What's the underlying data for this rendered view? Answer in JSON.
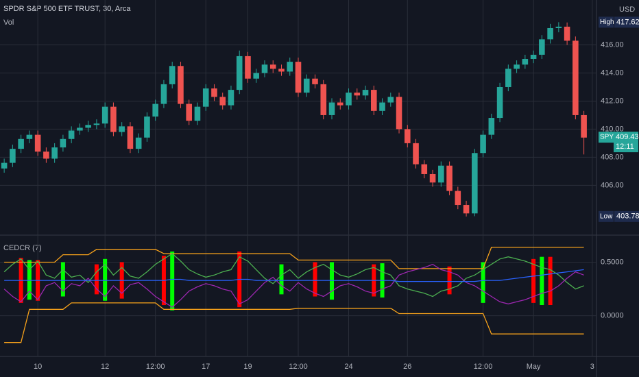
{
  "header": {
    "title": "SPDR S&P 500 ETF TRUST, 30, Arca",
    "volume_label": "Vol",
    "currency": "USD"
  },
  "badges": {
    "high_label": "High",
    "high": 417.62,
    "low_label": "Low",
    "low": 403.78,
    "symbol": "SPY",
    "last": 409.43,
    "countdown": "12:11"
  },
  "chart_data": [
    {
      "type": "candlestick",
      "up_color": "#26a69a",
      "down_color": "#ef5350",
      "grid": true,
      "categories": [
        null,
        null,
        null,
        null,
        "10",
        null,
        null,
        null,
        null,
        null,
        null,
        null,
        "12",
        null,
        null,
        null,
        null,
        null,
        "12:00",
        null,
        null,
        null,
        null,
        null,
        "17",
        null,
        null,
        null,
        null,
        "19",
        null,
        null,
        null,
        null,
        null,
        "12:00",
        null,
        null,
        null,
        null,
        null,
        "24",
        null,
        null,
        null,
        null,
        null,
        null,
        "26",
        null,
        null,
        null,
        null,
        null,
        null,
        null,
        null,
        "12:00",
        null,
        null,
        null,
        null,
        null,
        "May",
        null,
        null,
        null,
        null,
        null,
        null,
        "3"
      ],
      "open": [
        407.2,
        407.6,
        408.6,
        409.3,
        409.6,
        408.4,
        407.9,
        408.7,
        409.3,
        409.9,
        410.1,
        410.3,
        410.4,
        411.6,
        409.8,
        410.2,
        408.6,
        409.4,
        410.9,
        411.8,
        413.2,
        414.5,
        411.8,
        410.6,
        411.6,
        412.9,
        412.3,
        411.7,
        412.8,
        415.2,
        413.6,
        414.0,
        414.6,
        414.3,
        414.1,
        414.8,
        412.6,
        413.6,
        413.2,
        411.0,
        411.9,
        411.7,
        412.6,
        412.4,
        412.8,
        411.3,
        411.9,
        412.3,
        410.0,
        409.0,
        407.5,
        406.8,
        406.2,
        407.4,
        405.6,
        404.6,
        404.0,
        408.3,
        409.6,
        410.8,
        413.0,
        414.3,
        414.6,
        415.0,
        415.3,
        416.4,
        417.2,
        417.3,
        416.3,
        411.0,
        null
      ],
      "high": [
        407.9,
        408.9,
        409.6,
        409.9,
        409.9,
        408.7,
        409.0,
        409.6,
        410.2,
        410.4,
        410.6,
        410.7,
        411.9,
        411.9,
        410.5,
        410.5,
        409.7,
        411.2,
        412.1,
        413.5,
        414.8,
        414.8,
        412.1,
        411.9,
        413.2,
        413.2,
        412.6,
        413.1,
        415.6,
        415.5,
        414.3,
        414.9,
        414.9,
        414.6,
        415.1,
        415.1,
        413.9,
        413.9,
        413.5,
        412.2,
        412.2,
        412.9,
        412.9,
        413.1,
        413.1,
        412.2,
        412.6,
        412.6,
        410.3,
        409.3,
        407.8,
        407.1,
        407.7,
        407.7,
        405.9,
        404.9,
        408.6,
        409.9,
        411.1,
        413.3,
        414.6,
        414.9,
        415.3,
        415.6,
        416.7,
        417.5,
        417.62,
        417.6,
        416.6,
        411.3,
        null
      ],
      "low": [
        406.9,
        407.3,
        408.3,
        409.0,
        408.1,
        407.6,
        407.6,
        408.4,
        409.0,
        409.6,
        409.8,
        410.0,
        410.1,
        409.5,
        409.5,
        408.3,
        408.3,
        409.1,
        410.6,
        411.5,
        412.9,
        411.5,
        410.3,
        410.3,
        411.3,
        412.0,
        411.4,
        411.4,
        412.5,
        413.3,
        413.3,
        413.7,
        414.0,
        413.8,
        413.8,
        412.3,
        412.3,
        412.9,
        410.7,
        410.7,
        411.4,
        411.4,
        412.1,
        412.1,
        411.0,
        411.0,
        411.6,
        409.7,
        408.7,
        407.2,
        406.5,
        405.9,
        405.9,
        405.3,
        404.3,
        403.78,
        403.8,
        408.0,
        409.3,
        410.5,
        412.7,
        414.0,
        414.3,
        414.7,
        415.0,
        416.1,
        416.9,
        416.0,
        410.7,
        408.2,
        null
      ],
      "close": [
        407.6,
        408.6,
        409.3,
        409.6,
        408.4,
        407.9,
        408.7,
        409.3,
        409.9,
        410.1,
        410.3,
        410.4,
        411.6,
        409.8,
        410.2,
        408.6,
        409.4,
        410.9,
        411.8,
        413.2,
        414.5,
        411.8,
        410.6,
        411.6,
        412.9,
        412.3,
        411.7,
        412.8,
        415.2,
        413.6,
        414.0,
        414.6,
        414.3,
        414.1,
        414.8,
        412.6,
        413.6,
        413.2,
        411.0,
        411.9,
        411.7,
        412.6,
        412.4,
        412.8,
        411.3,
        411.9,
        412.3,
        410.0,
        409.0,
        407.5,
        406.8,
        406.2,
        407.4,
        405.6,
        404.6,
        404.0,
        408.3,
        409.6,
        410.8,
        413.0,
        414.3,
        414.6,
        415.0,
        415.3,
        416.4,
        417.2,
        417.3,
        416.3,
        411.0,
        409.4,
        null
      ],
      "ylim": [
        402.6,
        419.2
      ],
      "yticks": [
        {
          "value": 406,
          "label": "406.00"
        },
        {
          "value": 408,
          "label": "408.00"
        },
        {
          "value": 410,
          "label": "410.00"
        },
        {
          "value": 412,
          "label": "412.00"
        },
        {
          "value": 414,
          "label": "414.00"
        },
        {
          "value": 416,
          "label": "416.00"
        }
      ]
    },
    {
      "type": "line",
      "title": "CEDCR (7)",
      "grid": true,
      "ylim": [
        -0.38,
        0.74
      ],
      "yticks": [
        {
          "value": 0,
          "label": "0.0000"
        },
        {
          "value": 0.5,
          "label": "0.5000"
        }
      ],
      "series": [
        {
          "color": "#f7a21b",
          "values": [
            0.5,
            0.5,
            0.5,
            0.5,
            0.5,
            0.5,
            0.5,
            0.57,
            0.57,
            0.57,
            0.57,
            0.62,
            0.62,
            0.62,
            0.62,
            0.62,
            0.62,
            0.62,
            0.62,
            0.58,
            0.58,
            0.58,
            0.58,
            0.58,
            0.58,
            0.58,
            0.58,
            0.58,
            0.58,
            0.58,
            0.58,
            0.58,
            0.58,
            0.58,
            0.58,
            0.52,
            0.52,
            0.52,
            0.52,
            0.52,
            0.52,
            0.52,
            0.52,
            0.52,
            0.52,
            0.52,
            0.52,
            0.44,
            0.44,
            0.44,
            0.44,
            0.44,
            0.44,
            0.44,
            0.44,
            0.44,
            0.44,
            0.44,
            0.64,
            0.64,
            0.64,
            0.64,
            0.64,
            0.64,
            0.64,
            0.64,
            0.64,
            0.64,
            0.64,
            0.64,
            null
          ]
        },
        {
          "color": "#f7a21b",
          "values": [
            -0.25,
            -0.25,
            -0.25,
            0.06,
            0.06,
            0.06,
            0.06,
            0.06,
            0.12,
            0.12,
            0.12,
            0.12,
            0.12,
            0.12,
            0.12,
            0.12,
            0.12,
            0.12,
            0.12,
            0.06,
            0.06,
            0.06,
            0.06,
            0.06,
            0.06,
            0.06,
            0.06,
            0.06,
            0.06,
            0.06,
            0.06,
            0.06,
            0.06,
            0.06,
            0.06,
            0.07,
            0.07,
            0.07,
            0.07,
            0.07,
            0.07,
            0.07,
            0.07,
            0.07,
            0.07,
            0.07,
            0.07,
            0.02,
            0.02,
            0.02,
            0.02,
            0.02,
            0.02,
            0.02,
            0.02,
            0.02,
            0.02,
            0.02,
            -0.17,
            -0.17,
            -0.17,
            -0.17,
            -0.17,
            -0.17,
            -0.17,
            -0.17,
            -0.17,
            -0.17,
            -0.17,
            -0.17,
            null
          ]
        },
        {
          "color": "#4caf50",
          "values": [
            0.41,
            0.48,
            0.53,
            0.43,
            0.51,
            0.38,
            0.35,
            0.43,
            0.36,
            0.38,
            0.31,
            0.41,
            0.48,
            0.38,
            0.45,
            0.37,
            0.35,
            0.41,
            0.48,
            0.53,
            0.58,
            0.51,
            0.43,
            0.39,
            0.36,
            0.38,
            0.41,
            0.43,
            0.55,
            0.51,
            0.43,
            0.35,
            0.3,
            0.38,
            0.43,
            0.35,
            0.41,
            0.45,
            0.48,
            0.43,
            0.38,
            0.36,
            0.39,
            0.43,
            0.45,
            0.41,
            0.38,
            0.28,
            0.25,
            0.23,
            0.21,
            0.18,
            0.23,
            0.25,
            0.28,
            0.35,
            0.38,
            0.43,
            0.48,
            0.53,
            0.55,
            0.53,
            0.51,
            0.48,
            0.45,
            0.43,
            0.38,
            0.31,
            0.25,
            0.28,
            null
          ]
        },
        {
          "color": "#9c27b0",
          "values": [
            0.25,
            0.18,
            0.13,
            0.23,
            0.15,
            0.28,
            0.31,
            0.23,
            0.3,
            0.28,
            0.35,
            0.25,
            0.18,
            0.28,
            0.21,
            0.29,
            0.31,
            0.25,
            0.18,
            0.13,
            0.08,
            0.15,
            0.23,
            0.27,
            0.3,
            0.28,
            0.25,
            0.23,
            0.11,
            0.15,
            0.23,
            0.31,
            0.36,
            0.28,
            0.23,
            0.31,
            0.25,
            0.21,
            0.18,
            0.23,
            0.28,
            0.3,
            0.27,
            0.23,
            0.21,
            0.25,
            0.28,
            0.38,
            0.41,
            0.43,
            0.45,
            0.48,
            0.43,
            0.41,
            0.38,
            0.31,
            0.28,
            0.23,
            0.18,
            0.13,
            0.11,
            0.13,
            0.15,
            0.18,
            0.21,
            0.23,
            0.28,
            0.35,
            0.41,
            0.38,
            null
          ]
        },
        {
          "color": "#2962ff",
          "values": [
            0.33,
            0.33,
            0.33,
            0.33,
            0.33,
            0.33,
            0.33,
            0.33,
            0.33,
            0.33,
            0.33,
            0.33,
            0.33,
            0.33,
            0.33,
            0.33,
            0.33,
            0.33,
            0.33,
            0.33,
            0.34,
            0.34,
            0.33,
            0.33,
            0.33,
            0.33,
            0.33,
            0.33,
            0.34,
            0.34,
            0.33,
            0.33,
            0.33,
            0.33,
            0.33,
            0.33,
            0.33,
            0.33,
            0.33,
            0.33,
            0.33,
            0.33,
            0.33,
            0.33,
            0.33,
            0.33,
            0.33,
            0.32,
            0.32,
            0.32,
            0.32,
            0.32,
            0.32,
            0.32,
            0.32,
            0.32,
            0.32,
            0.33,
            0.33,
            0.33,
            0.34,
            0.35,
            0.36,
            0.37,
            0.38,
            0.39,
            0.4,
            0.41,
            0.42,
            0.43,
            null
          ]
        }
      ],
      "bars": [
        {
          "color": "#00ff00",
          "x": [
            3,
            7,
            12,
            20,
            33,
            39,
            45,
            57,
            64
          ],
          "top": [
            0.52,
            0.5,
            0.53,
            0.6,
            0.48,
            0.5,
            0.49,
            0.5,
            0.55
          ],
          "bottom": [
            0.15,
            0.18,
            0.14,
            0.05,
            0.2,
            0.15,
            0.17,
            0.12,
            0.1
          ]
        },
        {
          "color": "#ff0000",
          "x": [
            2,
            4,
            11,
            14,
            19,
            28,
            37,
            44,
            53,
            63,
            65
          ],
          "top": [
            0.54,
            0.52,
            0.48,
            0.5,
            0.56,
            0.6,
            0.5,
            0.48,
            0.46,
            0.53,
            0.55
          ],
          "bottom": [
            0.12,
            0.14,
            0.2,
            0.16,
            0.1,
            0.08,
            0.18,
            0.18,
            0.2,
            0.12,
            0.1
          ]
        }
      ]
    }
  ]
}
